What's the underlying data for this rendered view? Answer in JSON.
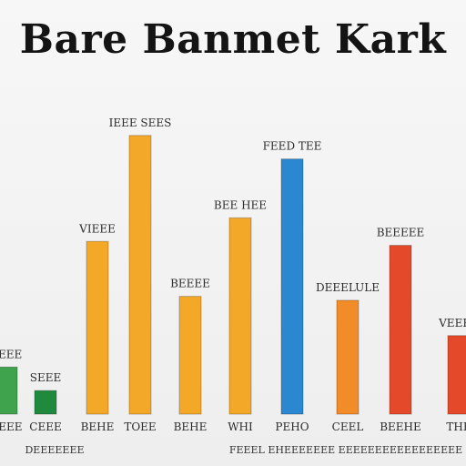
{
  "chart_data": {
    "type": "bar",
    "title": "Bare Banmet Kark",
    "categories": [
      "BEEE",
      "CEEE",
      "BEHE",
      "TOEE",
      "BEHE",
      "WHI",
      "PEHO",
      "CEEL",
      "BEEHE",
      "THE"
    ],
    "values": [
      12,
      6,
      44,
      71,
      30,
      50,
      65,
      29,
      43,
      20
    ],
    "data_labels": [
      "SEEE",
      "SEEE",
      "VIEEE",
      "IEEE SEES",
      "BEEEE",
      "BEE HEE",
      "FEED TEE",
      "DEEELULE",
      "BEEEEE",
      "VEEEE"
    ],
    "colors": [
      "#3fa34d",
      "#1f8a3e",
      "#f4a828",
      "#f4a828",
      "#f4a828",
      "#f4a828",
      "#2a87d0",
      "#f28c28",
      "#e4492a",
      "#e4492a"
    ],
    "xlabel": "DEEEEEEE",
    "caption": "FEEEL EHEEEEEEE EEEEEEEEEEEEEEEEE",
    "ylim": [
      0,
      80
    ],
    "grid": false,
    "legend": "none"
  }
}
